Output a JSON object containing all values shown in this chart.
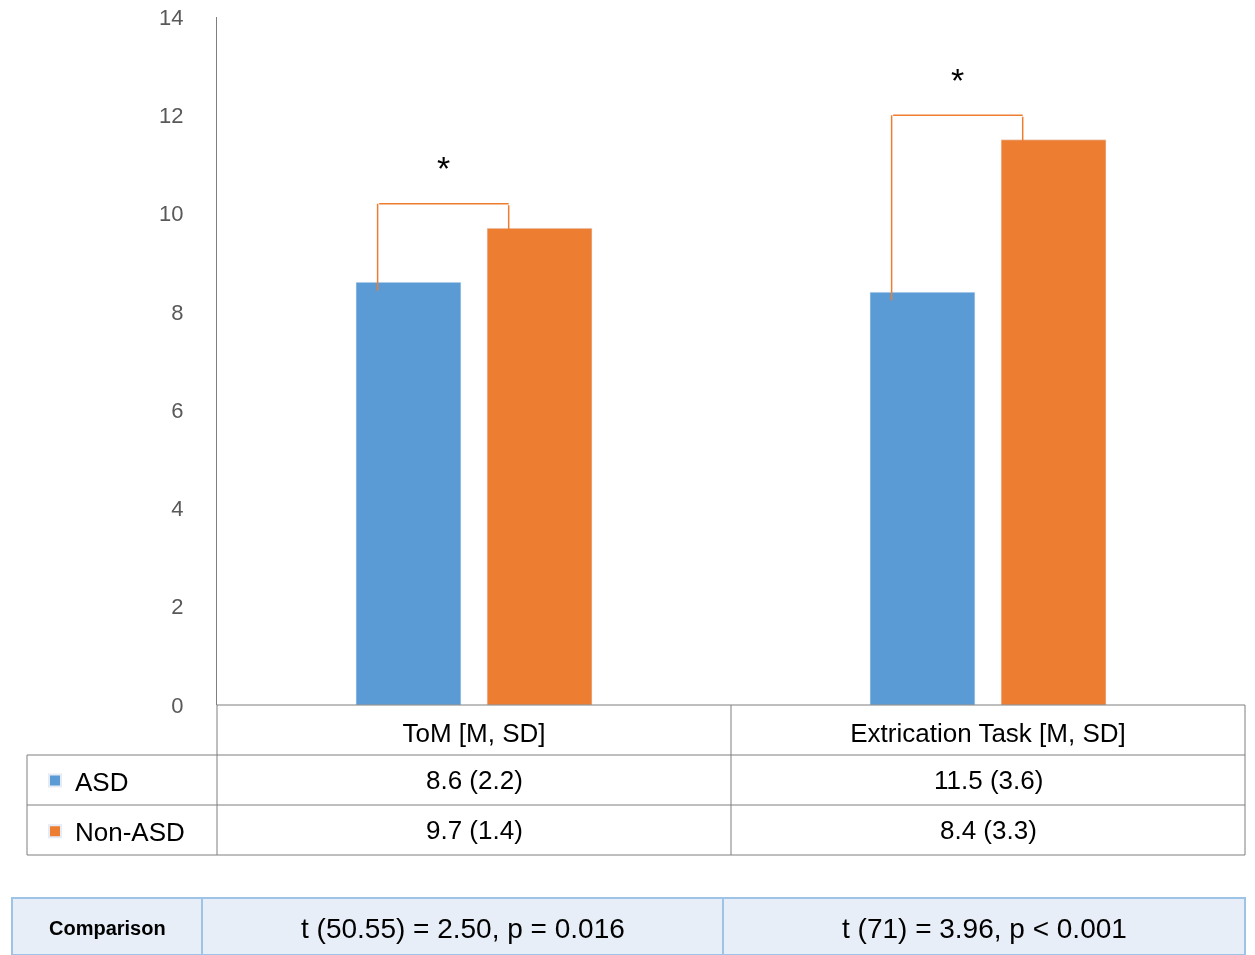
{
  "chart_data": {
    "type": "bar",
    "categories": [
      "ToM [M, SD]",
      "Extrication Task [M, SD]"
    ],
    "series": [
      {
        "name": "ASD",
        "color": "#5b9bd5",
        "values": [
          8.6,
          8.4
        ]
      },
      {
        "name": "Non-ASD",
        "color": "#ed7d31",
        "values": [
          9.7,
          11.5
        ]
      }
    ],
    "ylim": [
      0,
      14
    ],
    "yticks": [
      0,
      2,
      4,
      6,
      8,
      10,
      12,
      14
    ],
    "legend": "bottom left",
    "annotations": [
      "*",
      "*",
      "8.6 (2.2)",
      "11.5 (3.6)",
      "9.7 (1.4)",
      "8.4 (3.3)",
      "Comparison",
      "t (50.55) = 2.50, p = 0.016",
      "t (71) = 3.96, p < 0.001"
    ]
  }
}
